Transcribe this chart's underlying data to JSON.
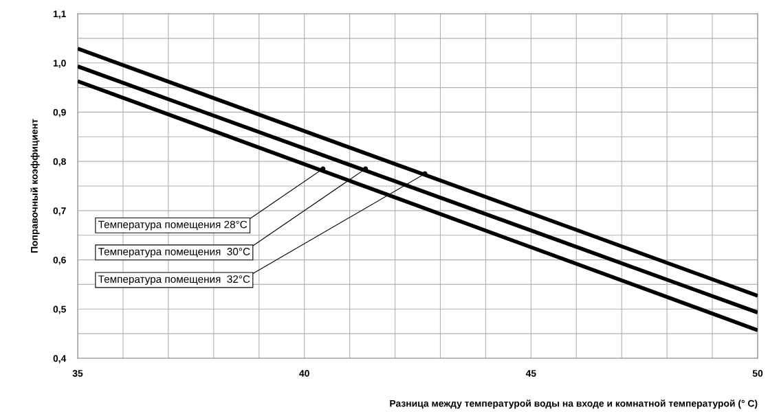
{
  "chart_data": {
    "type": "line",
    "xlabel": "Разница между температурой воды на входе и комнатной температурой (° C)",
    "ylabel": "Поправочный коэффициент",
    "series": [
      {
        "color": "#000000",
        "values": [
          0.963,
          0.457
        ]
      },
      {
        "color": "#000000",
        "values": [
          0.993,
          0.493
        ]
      },
      {
        "color": "#000000",
        "values": [
          1.029,
          0.527
        ]
      }
    ],
    "x": [
      35,
      50
    ],
    "xlim": [
      35,
      50
    ],
    "ylim": [
      0.4,
      1.1
    ],
    "xticks": [
      35,
      {
        "value": 36,
        "label": null
      },
      {
        "value": 37,
        "label": null
      },
      {
        "value": 38,
        "label": null
      },
      {
        "value": 39,
        "label": null
      },
      {
        "value": 40,
        "label": "40"
      },
      {
        "value": 41,
        "label": null
      },
      {
        "value": 42,
        "label": null
      },
      {
        "value": 43,
        "label": null
      },
      {
        "value": 44,
        "label": null
      },
      {
        "value": 45,
        "label": "45"
      },
      {
        "value": 46,
        "label": null
      },
      {
        "value": 47,
        "label": null
      },
      {
        "value": 48,
        "label": null
      },
      {
        "value": 49,
        "label": null
      },
      50
    ],
    "yticks": [
      {
        "value": 0.4,
        "label": "0,4"
      },
      {
        "value": 0.45,
        "label": null
      },
      {
        "value": 0.5,
        "label": "0,5"
      },
      {
        "value": 0.55,
        "label": null
      },
      {
        "value": 0.6,
        "label": "0,6"
      },
      {
        "value": 0.65,
        "label": null
      },
      {
        "value": 0.7,
        "label": "0,7"
      },
      {
        "value": 0.75,
        "label": null
      },
      {
        "value": 0.8,
        "label": "0,8"
      },
      {
        "value": 0.85,
        "label": null
      },
      {
        "value": 0.9,
        "label": "0,9"
      },
      {
        "value": 0.95,
        "label": null
      },
      {
        "value": 1.0,
        "label": "1,0"
      },
      {
        "value": 1.05,
        "label": null
      },
      {
        "value": 1.1,
        "label": "1,1"
      }
    ],
    "grid": true,
    "marker": "none",
    "line_style": "solid",
    "annotations": [
      {
        "text": "Температура помещения 28°C",
        "x": 40.41,
        "y": 0.785
      },
      {
        "text": "Температура помещения  30°C",
        "x": 41.35,
        "y": 0.785
      },
      {
        "text": "Температура помещения  32°C",
        "x": 42.66,
        "y": 0.775
      }
    ]
  }
}
